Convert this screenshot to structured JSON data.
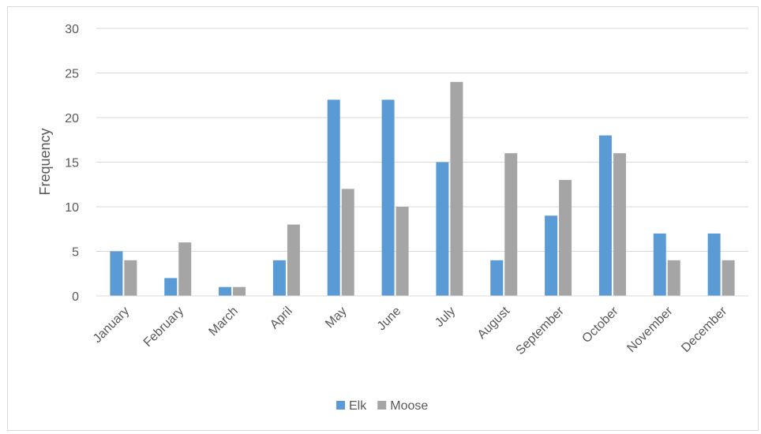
{
  "chart_data": {
    "type": "bar",
    "title": "",
    "xlabel": "",
    "ylabel": "Frequency",
    "ylim": [
      0,
      30
    ],
    "yticks": [
      0,
      5,
      10,
      15,
      20,
      25,
      30
    ],
    "grid": true,
    "legend_position": "bottom",
    "categories": [
      "January",
      "February",
      "March",
      "April",
      "May",
      "June",
      "July",
      "August",
      "September",
      "October",
      "November",
      "December"
    ],
    "series": [
      {
        "name": "Elk",
        "color": "#5b9bd5",
        "values": [
          5,
          2,
          1,
          4,
          22,
          22,
          15,
          4,
          9,
          18,
          7,
          7
        ]
      },
      {
        "name": "Moose",
        "color": "#a5a5a5",
        "values": [
          4,
          6,
          1,
          8,
          12,
          10,
          24,
          16,
          13,
          16,
          4,
          4
        ]
      }
    ]
  }
}
